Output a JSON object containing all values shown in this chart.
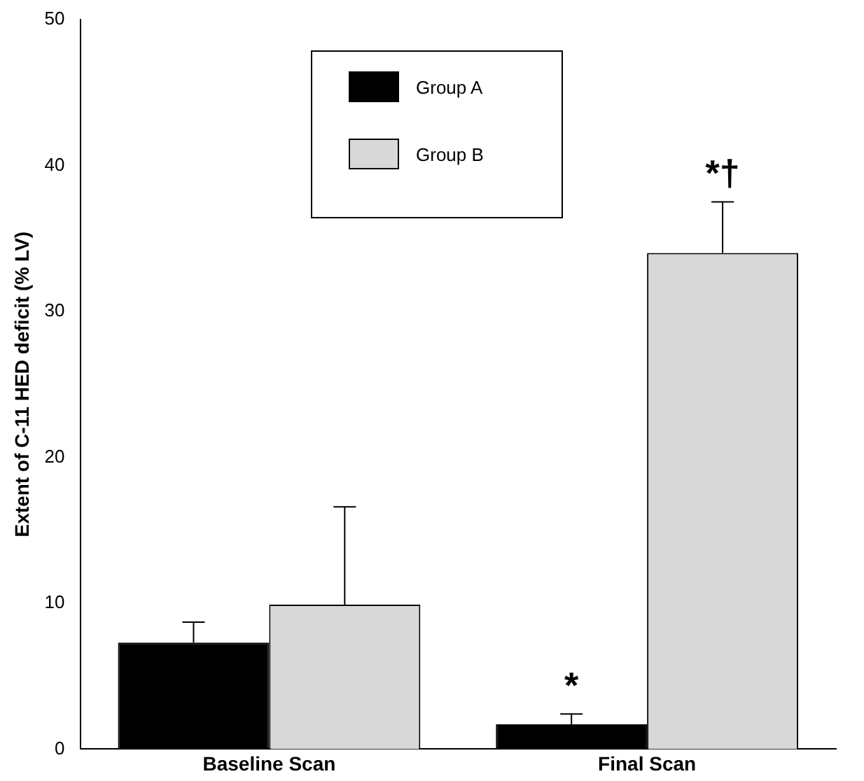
{
  "chart_data": {
    "type": "bar",
    "ylabel": "Extent of C-11 HED deficit (% LV)",
    "categories": [
      "Baseline Scan",
      "Final Scan"
    ],
    "series": [
      {
        "name": "Group A",
        "color": "#000000",
        "values": [
          7.3,
          1.7
        ],
        "errors": [
          [
            7.3,
            8.7
          ],
          [
            1.7,
            2.4
          ]
        ]
      },
      {
        "name": "Group B",
        "color": "#d8d8d8",
        "values": [
          9.9,
          34.0
        ],
        "errors": [
          [
            9.9,
            16.6
          ],
          [
            34.0,
            37.5
          ]
        ]
      }
    ],
    "ylim": [
      0,
      50
    ],
    "yticks": [
      0,
      10,
      20,
      30,
      40,
      50
    ],
    "grid": false,
    "legend": "top",
    "annotations": [
      {
        "text": "*",
        "x": "Final Scan",
        "y": 1.7
      },
      {
        "text": "*†",
        "x": "Final Scan",
        "y": 34.0
      }
    ]
  }
}
